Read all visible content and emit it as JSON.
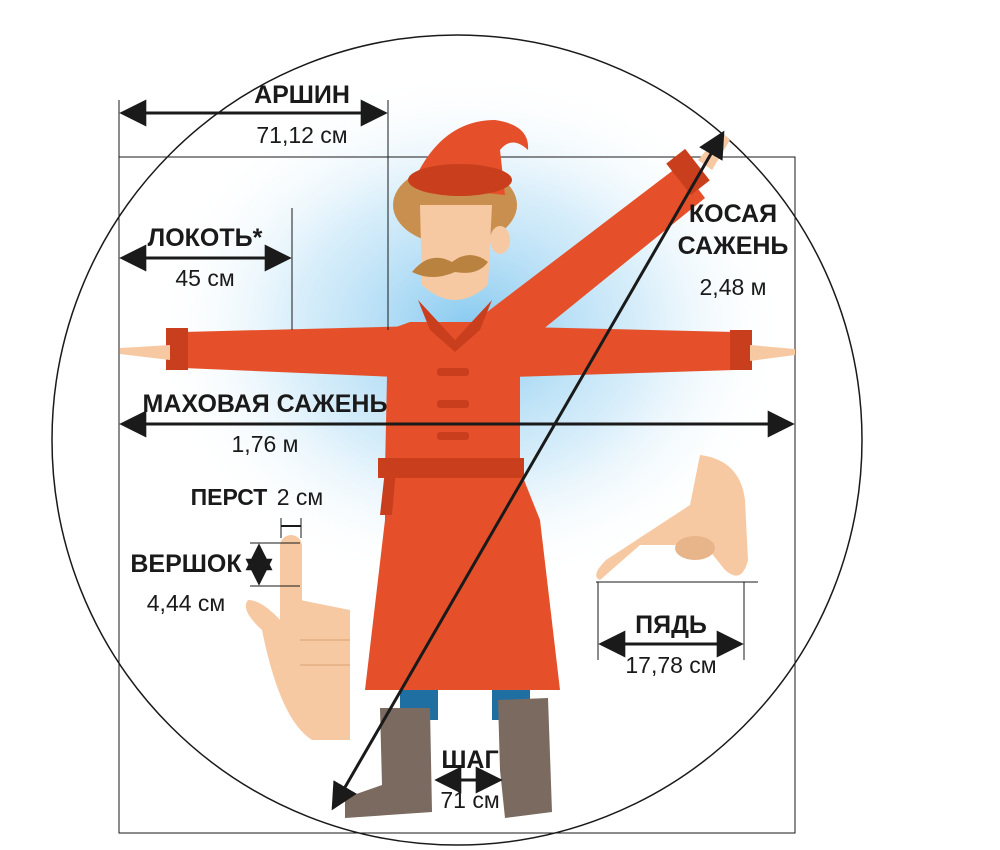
{
  "measures": {
    "arshin": {
      "name": "АРШИН",
      "value": "71,12 см"
    },
    "lokot": {
      "name": "ЛОКОТЬ*",
      "value": "45 см"
    },
    "kosaya": {
      "name_line1": "КОСАЯ",
      "name_line2": "САЖЕНЬ",
      "value": "2,48 м"
    },
    "mahovaya": {
      "name": "МАХОВАЯ САЖЕНЬ",
      "value": "1,76 м"
    },
    "perst": {
      "name": "ПЕРСТ",
      "value": "2 см"
    },
    "vershok": {
      "name": "ВЕРШОК",
      "value": "4,44 см"
    },
    "pyad": {
      "name": "ПЯДЬ",
      "value": "17,78 см"
    },
    "shag": {
      "name": "ШАГ",
      "value": "71 см"
    }
  },
  "colors": {
    "caftan": "#e5502b",
    "caftan_dark": "#c93f1d",
    "skin": "#f7c9a3",
    "hair": "#c98f4e",
    "moustache": "#b9823f",
    "boots": "#7a6a60",
    "pants": "#1f6fa3",
    "glow": "#7fc6ef",
    "line": "#1a1a1a"
  },
  "icons": [
    "man-figure",
    "pointing-hand-icon",
    "span-hand-icon"
  ]
}
